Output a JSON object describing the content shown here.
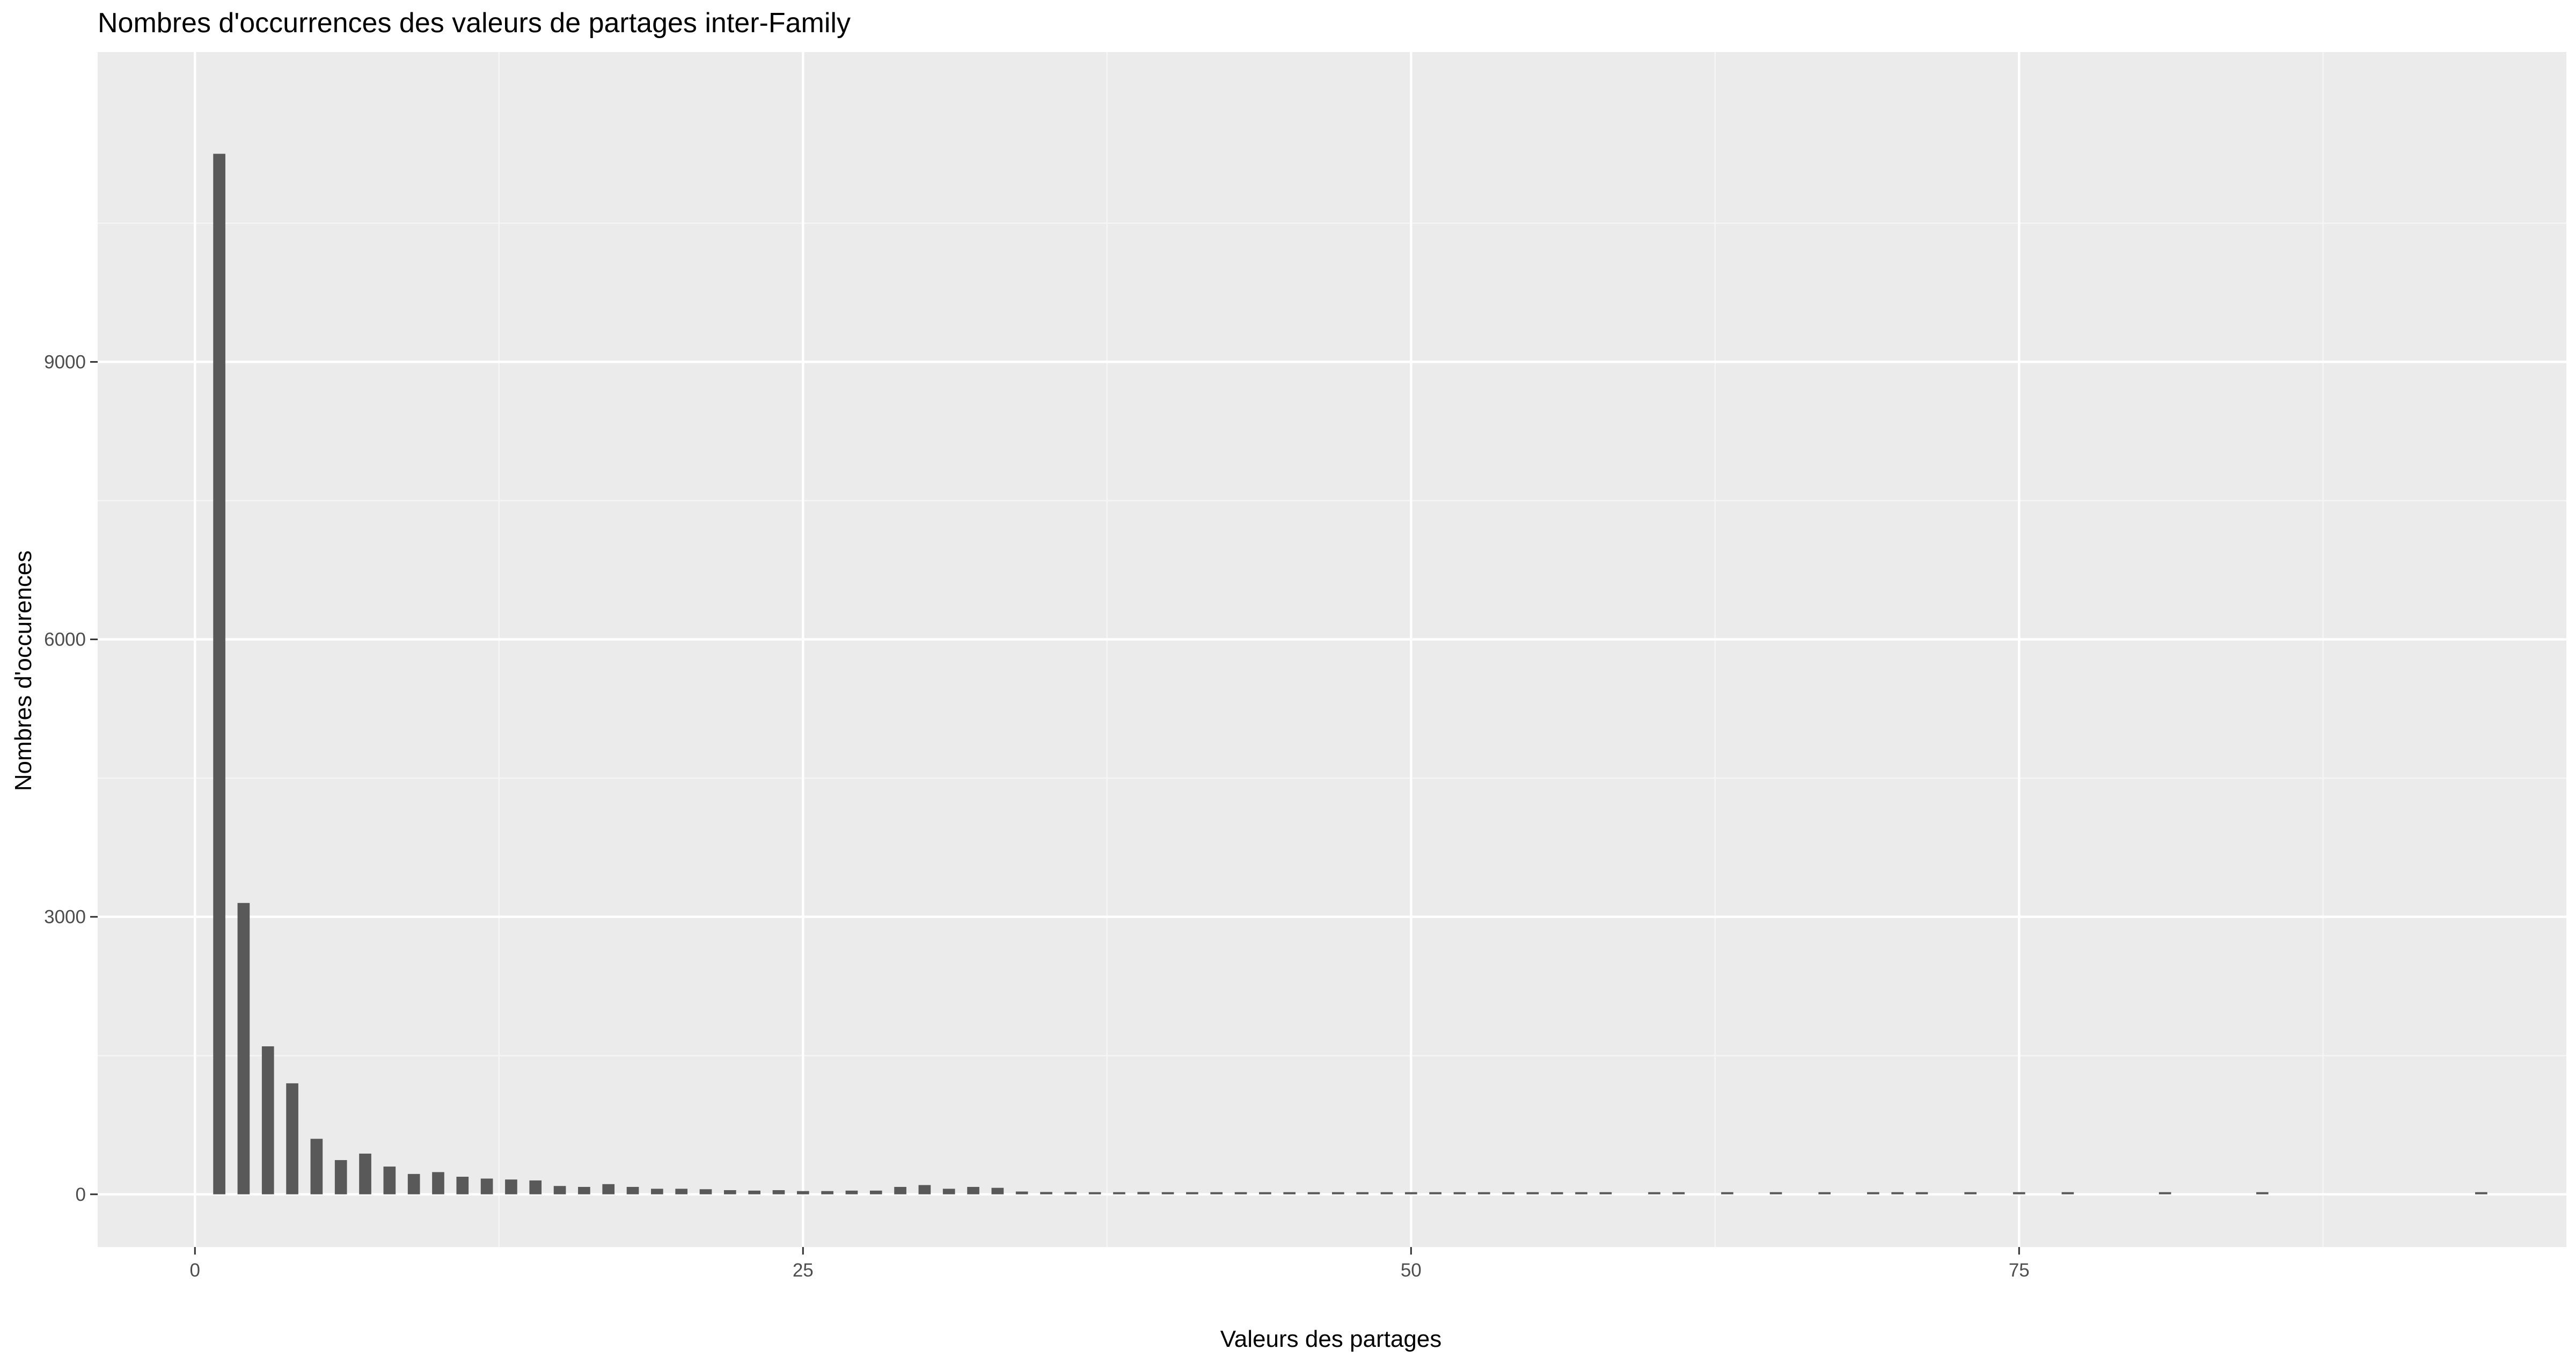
{
  "chart_data": {
    "type": "bar",
    "title": "Nombres d'occurrences des valeurs de partages inter-Family",
    "xlabel": "Valeurs des partages",
    "ylabel": "Nombres d'occurences",
    "xlim": [
      -4,
      97.5
    ],
    "ylim": [
      -570,
      12350
    ],
    "x_ticks": [
      0,
      25,
      50,
      75
    ],
    "x_tick_labels": [
      "0",
      "25",
      "50",
      "75"
    ],
    "y_ticks": [
      0,
      3000,
      6000,
      9000
    ],
    "y_tick_labels": [
      "0",
      "3000",
      "6000",
      "9000"
    ],
    "grid": true,
    "legend": "none",
    "bar_width": 0.5,
    "colors": {
      "bar": "#595959",
      "panel": "#ebebeb",
      "grid_major": "#ffffff",
      "grid_minor": "#f5f5f5",
      "axis_tick": "#333333"
    },
    "x": [
      1,
      2,
      3,
      4,
      5,
      6,
      7,
      8,
      9,
      10,
      11,
      12,
      13,
      14,
      15,
      16,
      17,
      18,
      19,
      20,
      21,
      22,
      23,
      24,
      25,
      26,
      27,
      28,
      29,
      30,
      31,
      32,
      33,
      34,
      35,
      36,
      37,
      38,
      39,
      40,
      41,
      42,
      43,
      44,
      45,
      46,
      47,
      48,
      49,
      50,
      51,
      52,
      53,
      54,
      55,
      56,
      57,
      58,
      60,
      61,
      63,
      65,
      67,
      69,
      70,
      71,
      73,
      75,
      77,
      81,
      85,
      94
    ],
    "values": [
      11250,
      3150,
      1600,
      1200,
      600,
      370,
      440,
      300,
      220,
      240,
      190,
      170,
      160,
      150,
      90,
      80,
      110,
      80,
      60,
      60,
      55,
      45,
      40,
      45,
      35,
      35,
      40,
      40,
      80,
      100,
      60,
      80,
      70,
      30,
      25,
      25,
      20,
      20,
      25,
      20,
      15,
      15,
      18,
      15,
      12,
      12,
      10,
      10,
      8,
      10,
      6,
      6,
      6,
      5,
      5,
      4,
      4,
      4,
      3,
      3,
      3,
      3,
      3,
      3,
      3,
      3,
      3,
      3,
      3,
      3,
      3,
      3
    ]
  }
}
